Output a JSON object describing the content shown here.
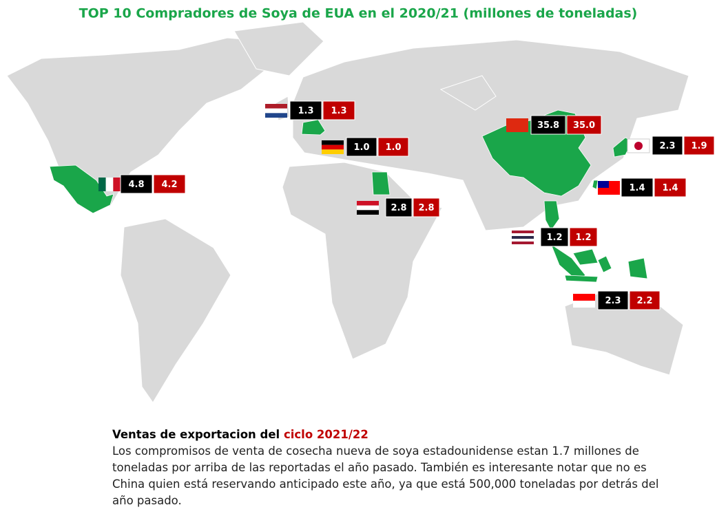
{
  "title": "TOP 10 Compradores de Soya de EUA en el 2020/21 (millones de toneladas)",
  "markers": [
    {
      "values": [
        "1.3",
        "1.3"
      ]
    },
    {
      "values": [
        "35.8",
        "35.0"
      ]
    },
    {
      "values": [
        "1.0",
        "1.0"
      ]
    },
    {
      "values": [
        "2.3",
        "1.9"
      ]
    },
    {
      "values": [
        "4.8",
        "4.2"
      ]
    },
    {
      "values": [
        "1.4",
        "1.4"
      ]
    },
    {
      "values": [
        "2.8",
        "2.8"
      ]
    },
    {
      "values": [
        "1.2",
        "1.2"
      ]
    },
    {
      "values": [
        "2.3",
        "2.2"
      ]
    }
  ],
  "note": {
    "heading": "Ventas de exportacion del ",
    "heading_highlight": "ciclo 2021/22",
    "body": "Los compromisos de venta de cosecha nueva de soya estadounidense estan 1.7 millones de toneladas por arriba de las reportadas el año pasado. También es interesante notar que no es China quien está reservando anticipado este año, ya que está 500,000 toneladas por detrás del año pasado."
  }
}
